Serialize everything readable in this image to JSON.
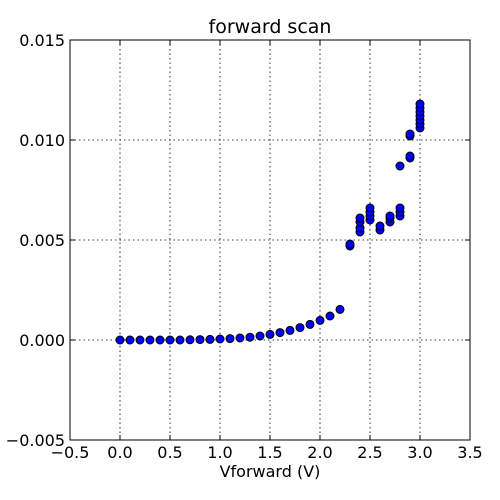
{
  "chart_data": {
    "type": "scatter",
    "title": "forward scan",
    "xlabel": "Vforward (V)",
    "ylabel": "",
    "xlim": [
      -0.5,
      3.5
    ],
    "ylim": [
      -0.005,
      0.015
    ],
    "grid": true,
    "x_ticks": [
      -0.5,
      0.0,
      0.5,
      1.0,
      1.5,
      2.0,
      2.5,
      3.0,
      3.5
    ],
    "x_tick_labels": [
      "−0.5",
      "0.0",
      "0.5",
      "1.0",
      "1.5",
      "2.0",
      "2.5",
      "3.0",
      "3.5"
    ],
    "y_ticks": [
      -0.005,
      0.0,
      0.005,
      0.01,
      0.015
    ],
    "y_tick_labels": [
      "−0.005",
      "0.000",
      "0.005",
      "0.010",
      "0.015"
    ],
    "marker_color": "#0000ff",
    "points": [
      {
        "x": 0.0,
        "y": 0.0
      },
      {
        "x": 0.1,
        "y": 0.0
      },
      {
        "x": 0.2,
        "y": 0.0
      },
      {
        "x": 0.3,
        "y": 0.0
      },
      {
        "x": 0.4,
        "y": 0.0
      },
      {
        "x": 0.5,
        "y": 0.0
      },
      {
        "x": 0.6,
        "y": 0.0
      },
      {
        "x": 0.7,
        "y": 1e-05
      },
      {
        "x": 0.8,
        "y": 2e-05
      },
      {
        "x": 0.9,
        "y": 3e-05
      },
      {
        "x": 1.0,
        "y": 5e-05
      },
      {
        "x": 1.1,
        "y": 7e-05
      },
      {
        "x": 1.2,
        "y": 0.0001
      },
      {
        "x": 1.3,
        "y": 0.00014
      },
      {
        "x": 1.4,
        "y": 0.0002
      },
      {
        "x": 1.5,
        "y": 0.00028
      },
      {
        "x": 1.6,
        "y": 0.00037
      },
      {
        "x": 1.7,
        "y": 0.00048
      },
      {
        "x": 1.8,
        "y": 0.00062
      },
      {
        "x": 1.9,
        "y": 0.00078
      },
      {
        "x": 2.0,
        "y": 0.00098
      },
      {
        "x": 2.1,
        "y": 0.0012
      },
      {
        "x": 2.2,
        "y": 0.00153
      },
      {
        "x": 2.3,
        "y": 0.0047
      },
      {
        "x": 2.3,
        "y": 0.0048
      },
      {
        "x": 2.4,
        "y": 0.0054
      },
      {
        "x": 2.4,
        "y": 0.0056
      },
      {
        "x": 2.4,
        "y": 0.0059
      },
      {
        "x": 2.4,
        "y": 0.0061
      },
      {
        "x": 2.5,
        "y": 0.006
      },
      {
        "x": 2.5,
        "y": 0.0062
      },
      {
        "x": 2.5,
        "y": 0.0064
      },
      {
        "x": 2.5,
        "y": 0.0066
      },
      {
        "x": 2.6,
        "y": 0.0055
      },
      {
        "x": 2.6,
        "y": 0.0057
      },
      {
        "x": 2.7,
        "y": 0.0059
      },
      {
        "x": 2.7,
        "y": 0.0061
      },
      {
        "x": 2.7,
        "y": 0.0062
      },
      {
        "x": 2.8,
        "y": 0.0062
      },
      {
        "x": 2.8,
        "y": 0.0064
      },
      {
        "x": 2.8,
        "y": 0.0066
      },
      {
        "x": 2.8,
        "y": 0.0087
      },
      {
        "x": 2.9,
        "y": 0.0091
      },
      {
        "x": 2.9,
        "y": 0.0092
      },
      {
        "x": 2.9,
        "y": 0.0102
      },
      {
        "x": 2.9,
        "y": 0.0103
      },
      {
        "x": 3.0,
        "y": 0.0106
      },
      {
        "x": 3.0,
        "y": 0.0108
      },
      {
        "x": 3.0,
        "y": 0.011
      },
      {
        "x": 3.0,
        "y": 0.0112
      },
      {
        "x": 3.0,
        "y": 0.0114
      },
      {
        "x": 3.0,
        "y": 0.0116
      },
      {
        "x": 3.0,
        "y": 0.0118
      }
    ]
  }
}
